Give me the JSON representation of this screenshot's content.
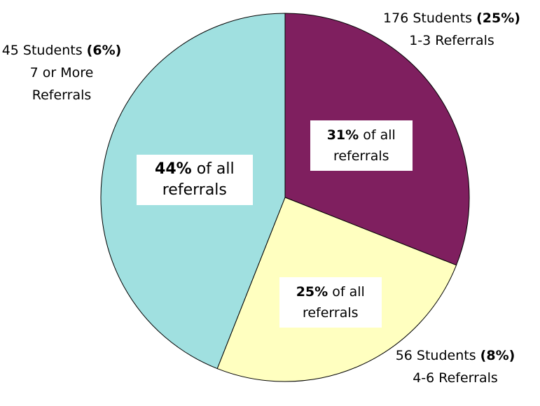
{
  "chart_data": {
    "type": "pie",
    "categories": [
      "1-3 Referrals",
      "4-6 Referrals",
      "7 or More Referrals"
    ],
    "values": [
      31,
      25,
      44
    ],
    "value_labels": [
      "31%",
      "25%",
      "44%"
    ],
    "value_label_suffix": "of all referrals",
    "students": [
      "176 Students",
      "56 Students",
      "45 Students"
    ],
    "student_shares": [
      "(25%)",
      "(8%)",
      "(6%)"
    ],
    "colors": [
      "#7f1f5f",
      "#ffffc0",
      "#a0e0e0"
    ]
  }
}
